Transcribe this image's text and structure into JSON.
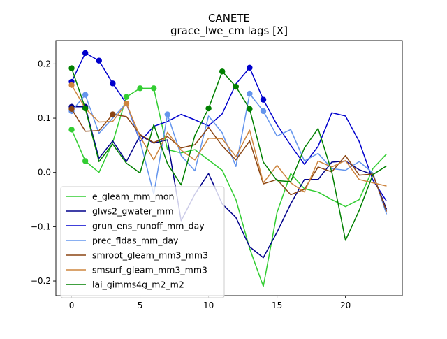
{
  "chart_data": {
    "type": "line",
    "title": "CANETE",
    "subtitle": "grace_lwe_cm lags [X]",
    "xlabel": "",
    "ylabel": "",
    "xlim": [
      -1.15,
      24.15
    ],
    "ylim": [
      -0.227,
      0.243
    ],
    "x_ticks": [
      0,
      5,
      10,
      15,
      20
    ],
    "y_ticks": [
      -0.2,
      -0.1,
      0.0,
      0.1,
      0.2
    ],
    "y_tick_labels": [
      "−0.2",
      "−0.1",
      "0.0",
      "0.1",
      "0.2"
    ],
    "legend_position": "lower-left",
    "x": [
      0,
      1,
      2,
      3,
      4,
      5,
      6,
      7,
      8,
      9,
      10,
      11,
      12,
      13,
      14,
      15,
      16,
      17,
      18,
      19,
      20,
      21,
      22,
      23
    ],
    "series": [
      {
        "name": "e_gleam_mm_mon",
        "color": "#32cd32",
        "values": [
          0.079,
          0.021,
          0.0,
          0.055,
          0.139,
          0.155,
          0.155,
          0.042,
          0.036,
          0.042,
          0.023,
          0.004,
          -0.05,
          -0.14,
          -0.21,
          -0.074,
          -0.002,
          -0.03,
          -0.036,
          -0.05,
          -0.063,
          -0.05,
          0.007,
          0.034
        ],
        "highlighted": [
          0,
          1,
          4,
          5,
          6
        ]
      },
      {
        "name": "glws2_gwater_mm",
        "color": "#00008b",
        "values": [
          0.121,
          0.121,
          0.026,
          0.058,
          0.02,
          0.068,
          0.054,
          0.06,
          -0.089,
          -0.04,
          -0.002,
          -0.058,
          -0.083,
          -0.137,
          -0.157,
          -0.11,
          -0.058,
          -0.013,
          -0.013,
          0.019,
          0.021,
          0.005,
          -0.004,
          -0.068
        ],
        "highlighted": [
          0,
          1
        ]
      },
      {
        "name": "grun_ens_runoff_mm_day",
        "color": "#0000cd",
        "values": [
          0.167,
          0.22,
          0.206,
          0.164,
          0.127,
          0.057,
          0.085,
          0.094,
          0.107,
          0.097,
          0.086,
          0.108,
          0.163,
          0.193,
          0.134,
          0.088,
          0.05,
          0.015,
          0.048,
          0.11,
          0.104,
          0.057,
          -0.014,
          -0.053
        ],
        "highlighted": [
          0,
          1,
          2,
          3,
          13,
          14
        ]
      },
      {
        "name": "prec_fldas_mm_day",
        "color": "#6495ed",
        "values": [
          0.113,
          0.143,
          0.072,
          0.1,
          0.128,
          0.058,
          -0.04,
          0.107,
          0.031,
          0.003,
          0.104,
          0.073,
          0.011,
          0.145,
          0.113,
          0.067,
          0.079,
          0.021,
          0.035,
          0.007,
          0.004,
          0.02,
          -0.001,
          -0.077
        ],
        "highlighted": [
          0,
          1,
          7,
          13,
          14
        ]
      },
      {
        "name": "smroot_gleam_mm3_mm3",
        "color": "#8b4513",
        "values": [
          0.117,
          0.076,
          0.077,
          0.107,
          0.103,
          0.07,
          0.055,
          0.066,
          0.045,
          0.051,
          0.083,
          0.049,
          0.023,
          0.058,
          -0.021,
          -0.013,
          -0.041,
          -0.031,
          0.01,
          0.001,
          0.031,
          -0.005,
          -0.003,
          -0.072
        ],
        "highlighted": [
          0,
          3
        ]
      },
      {
        "name": "smsurf_gleam_mm3_mm3",
        "color": "#cd853f",
        "values": [
          0.161,
          0.118,
          0.093,
          0.094,
          0.127,
          0.066,
          0.023,
          0.074,
          0.041,
          0.023,
          0.063,
          0.062,
          0.029,
          0.078,
          -0.019,
          0.013,
          -0.019,
          -0.036,
          0.021,
          0.01,
          0.022,
          -0.013,
          -0.019,
          -0.025
        ],
        "highlighted": [
          0,
          4
        ]
      },
      {
        "name": "lai_gimms4g_m2_m2",
        "color": "#008000",
        "values": [
          0.192,
          0.118,
          0.02,
          0.052,
          0.017,
          -0.001,
          0.088,
          0.016,
          -0.023,
          0.068,
          0.118,
          0.186,
          0.158,
          0.117,
          0.019,
          -0.015,
          -0.017,
          0.045,
          0.081,
          0.001,
          -0.125,
          -0.07,
          -0.004,
          0.012
        ],
        "highlighted": [
          0,
          1,
          10,
          11,
          12,
          13
        ]
      }
    ]
  }
}
